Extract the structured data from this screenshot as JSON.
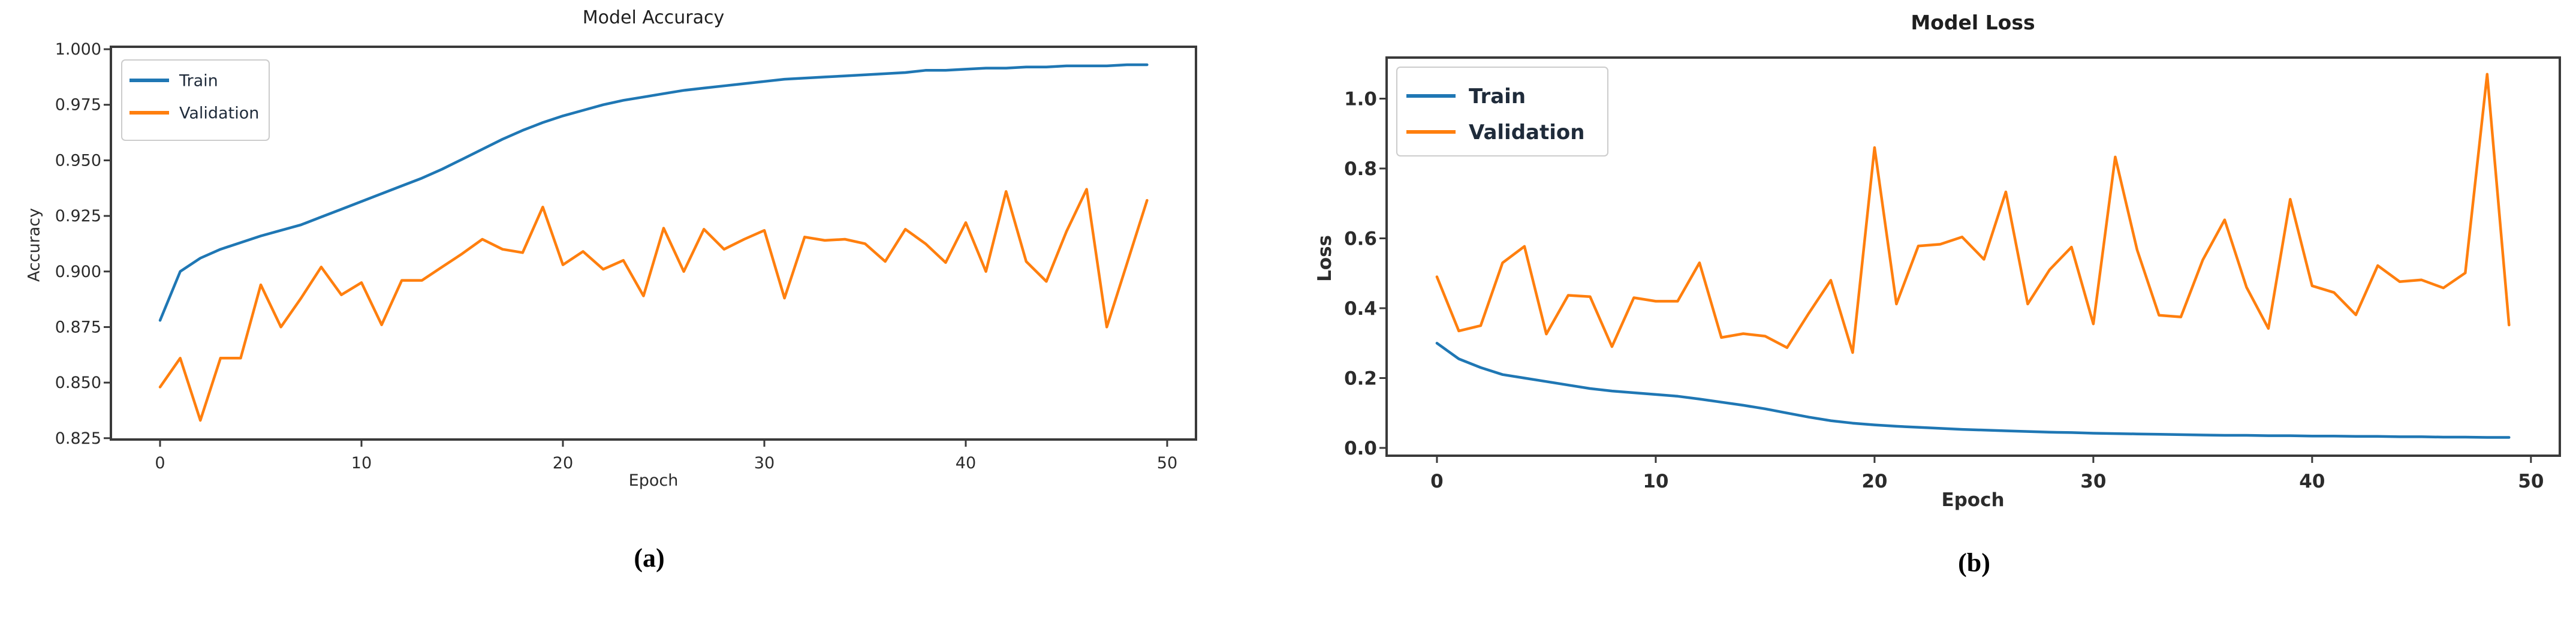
{
  "figure": {
    "caption_a": "(a)",
    "caption_b": "(b)"
  },
  "colors": {
    "train": "#1f77b4",
    "validation": "#ff7f0e",
    "spine": "#3a3a3a",
    "tick_text": "#2b2b2b",
    "legend_border": "#cccccc"
  },
  "chart_data": [
    {
      "type": "line",
      "title": "Model Accuracy",
      "xlabel": "Epoch",
      "ylabel": "Accuracy",
      "legend_position": "upper left",
      "grid": false,
      "xlim": [
        -2.44,
        51.43
      ],
      "ylim": [
        0.8244,
        1.0011
      ],
      "xtick_values": [
        0,
        10,
        20,
        30,
        40,
        50
      ],
      "xtick_labels": [
        "0",
        "10",
        "20",
        "30",
        "40",
        "50"
      ],
      "ytick_values": [
        1.0,
        0.975,
        0.95,
        0.925,
        0.9,
        0.875,
        0.85,
        0.825
      ],
      "ytick_labels": [
        "1.000",
        "0.975",
        "0.950",
        "0.925",
        "0.900",
        "0.875",
        "0.850",
        "0.825"
      ],
      "x": [
        0,
        1,
        2,
        3,
        4,
        5,
        6,
        7,
        8,
        9,
        10,
        11,
        12,
        13,
        14,
        15,
        16,
        17,
        18,
        19,
        20,
        21,
        22,
        23,
        24,
        25,
        26,
        27,
        28,
        29,
        30,
        31,
        32,
        33,
        34,
        35,
        36,
        37,
        38,
        39,
        40,
        41,
        42,
        43,
        44,
        45,
        46,
        47,
        48,
        49
      ],
      "series": [
        {
          "name": "Train",
          "color_key": "train",
          "values": [
            0.878,
            0.9,
            0.906,
            0.91,
            0.913,
            0.916,
            0.9185,
            0.921,
            0.9245,
            0.928,
            0.9315,
            0.935,
            0.9385,
            0.942,
            0.946,
            0.9505,
            0.955,
            0.9595,
            0.9635,
            0.967,
            0.97,
            0.9725,
            0.975,
            0.977,
            0.9785,
            0.98,
            0.9815,
            0.9825,
            0.9835,
            0.9845,
            0.9855,
            0.9865,
            0.987,
            0.9875,
            0.988,
            0.9885,
            0.989,
            0.9895,
            0.9905,
            0.9905,
            0.991,
            0.9915,
            0.9915,
            0.992,
            0.992,
            0.9925,
            0.9925,
            0.9925,
            0.993,
            0.993
          ]
        },
        {
          "name": "Validation",
          "color_key": "validation",
          "values": [
            0.848,
            0.861,
            0.833,
            0.861,
            0.861,
            0.894,
            0.875,
            0.888,
            0.902,
            0.8895,
            0.895,
            0.876,
            0.896,
            0.896,
            0.902,
            0.908,
            0.9145,
            0.91,
            0.9085,
            0.929,
            0.903,
            0.909,
            0.901,
            0.905,
            0.889,
            0.9195,
            0.9,
            0.919,
            0.91,
            0.9145,
            0.9185,
            0.888,
            0.9155,
            0.914,
            0.9145,
            0.9125,
            0.9045,
            0.919,
            0.9125,
            0.904,
            0.922,
            0.9,
            0.936,
            0.9045,
            0.8955,
            0.918,
            0.937,
            0.875,
            0.9035,
            0.932
          ]
        }
      ]
    },
    {
      "type": "line",
      "title": "Model Loss",
      "xlabel": "Epoch",
      "ylabel": "Loss",
      "legend_position": "upper left",
      "grid": false,
      "xlim": [
        -2.3,
        51.32
      ],
      "ylim": [
        -0.0223,
        1.1176
      ],
      "xtick_values": [
        0,
        10,
        20,
        30,
        40,
        50
      ],
      "xtick_labels": [
        "0",
        "10",
        "20",
        "30",
        "40",
        "50"
      ],
      "ytick_values": [
        1.0,
        0.8,
        0.6,
        0.4,
        0.2,
        0.0
      ],
      "ytick_labels": [
        "1.0",
        "0.8",
        "0.6",
        "0.4",
        "0.2",
        "0.0"
      ],
      "x": [
        0,
        1,
        2,
        3,
        4,
        5,
        6,
        7,
        8,
        9,
        10,
        11,
        12,
        13,
        14,
        15,
        16,
        17,
        18,
        19,
        20,
        21,
        22,
        23,
        24,
        25,
        26,
        27,
        28,
        29,
        30,
        31,
        32,
        33,
        34,
        35,
        36,
        37,
        38,
        39,
        40,
        41,
        42,
        43,
        44,
        45,
        46,
        47,
        48,
        49
      ],
      "series": [
        {
          "name": "Train",
          "color_key": "train",
          "values": [
            0.3,
            0.255,
            0.23,
            0.21,
            0.2,
            0.19,
            0.18,
            0.17,
            0.163,
            0.158,
            0.153,
            0.148,
            0.14,
            0.131,
            0.122,
            0.112,
            0.1,
            0.088,
            0.078,
            0.071,
            0.066,
            0.062,
            0.059,
            0.056,
            0.053,
            0.051,
            0.049,
            0.047,
            0.045,
            0.044,
            0.042,
            0.041,
            0.04,
            0.039,
            0.038,
            0.037,
            0.036,
            0.036,
            0.035,
            0.035,
            0.034,
            0.034,
            0.033,
            0.033,
            0.032,
            0.032,
            0.031,
            0.031,
            0.03,
            0.03
          ]
        },
        {
          "name": "Validation",
          "color_key": "validation",
          "values": [
            0.49,
            0.335,
            0.35,
            0.53,
            0.577,
            0.326,
            0.437,
            0.433,
            0.29,
            0.43,
            0.42,
            0.42,
            0.53,
            0.316,
            0.327,
            0.32,
            0.287,
            0.386,
            0.48,
            0.273,
            0.86,
            0.412,
            0.578,
            0.583,
            0.604,
            0.54,
            0.733,
            0.412,
            0.51,
            0.575,
            0.355,
            0.833,
            0.567,
            0.38,
            0.375,
            0.538,
            0.653,
            0.46,
            0.342,
            0.712,
            0.464,
            0.445,
            0.381,
            0.522,
            0.476,
            0.481,
            0.458,
            0.501,
            1.07,
            0.352
          ]
        }
      ]
    }
  ]
}
